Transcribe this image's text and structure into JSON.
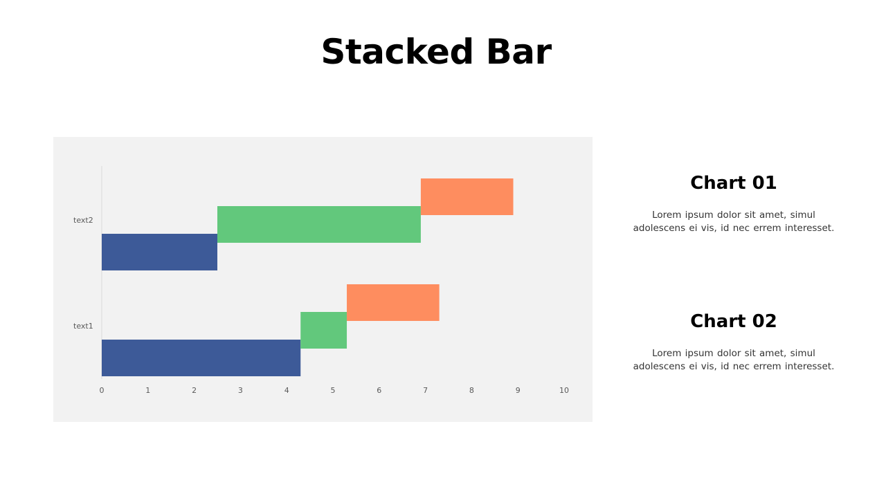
{
  "page": {
    "title": "Stacked Bar"
  },
  "chart_data": {
    "type": "bar",
    "orientation": "horizontal",
    "stacked": true,
    "categories": [
      "text1",
      "text2"
    ],
    "series": [
      {
        "values": [
          4.3,
          2.5
        ],
        "color": "#3d5a98"
      },
      {
        "values": [
          1.0,
          4.4
        ],
        "color": "#62c87c"
      },
      {
        "values": [
          2.0,
          2.0
        ],
        "color": "#fe8d5f"
      }
    ],
    "xlim": [
      0,
      10
    ],
    "x_ticks": [
      "0",
      "1",
      "2",
      "3",
      "4",
      "5",
      "6",
      "7",
      "8",
      "9",
      "10"
    ],
    "title": "",
    "xlabel": "",
    "ylabel": "",
    "grid": false,
    "legend": "none"
  },
  "side": [
    {
      "heading": "Chart 01",
      "text_line1": "Lorem ipsum dolor sit amet, simul",
      "text_line2": "adolescens ei vis, id nec errem interesset."
    },
    {
      "heading": "Chart 02",
      "text_line1": "Lorem ipsum dolor sit amet, simul",
      "text_line2": "adolescens ei vis, id nec errem interesset."
    }
  ]
}
